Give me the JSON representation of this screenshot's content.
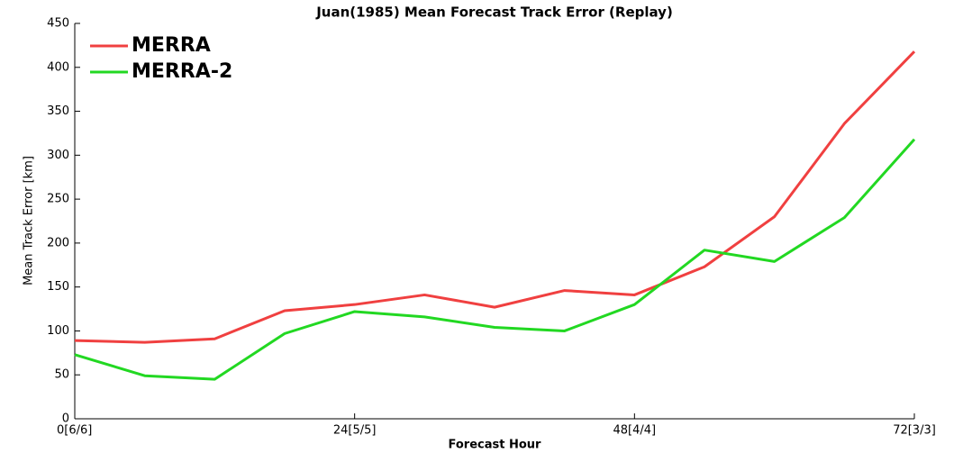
{
  "chart_data": {
    "type": "line",
    "title": "Juan(1985) Mean Forecast Track Error (Replay)",
    "xlabel": "Forecast Hour",
    "ylabel": "Mean Track Error [km]",
    "x": [
      0,
      6,
      12,
      18,
      24,
      30,
      36,
      42,
      48,
      54,
      60,
      66,
      72
    ],
    "series": [
      {
        "name": "MERRA",
        "color": "#f04040",
        "values": [
          89,
          87,
          91,
          123,
          130,
          141,
          127,
          146,
          141,
          173,
          230,
          336,
          418
        ]
      },
      {
        "name": "MERRA-2",
        "color": "#22d822",
        "values": [
          73,
          49,
          45,
          97,
          122,
          116,
          104,
          100,
          130,
          192,
          179,
          229,
          318
        ]
      }
    ],
    "xlim": [
      0,
      72
    ],
    "xticks": [
      {
        "value": 0,
        "label": "0[6/6]"
      },
      {
        "value": 24,
        "label": "24[5/5]"
      },
      {
        "value": 48,
        "label": "48[4/4]"
      },
      {
        "value": 72,
        "label": "72[3/3]"
      }
    ],
    "ylim": [
      0,
      450
    ],
    "yticks": [
      0,
      50,
      100,
      150,
      200,
      250,
      300,
      350,
      400,
      450
    ],
    "legend": "upper left",
    "grid": false
  }
}
